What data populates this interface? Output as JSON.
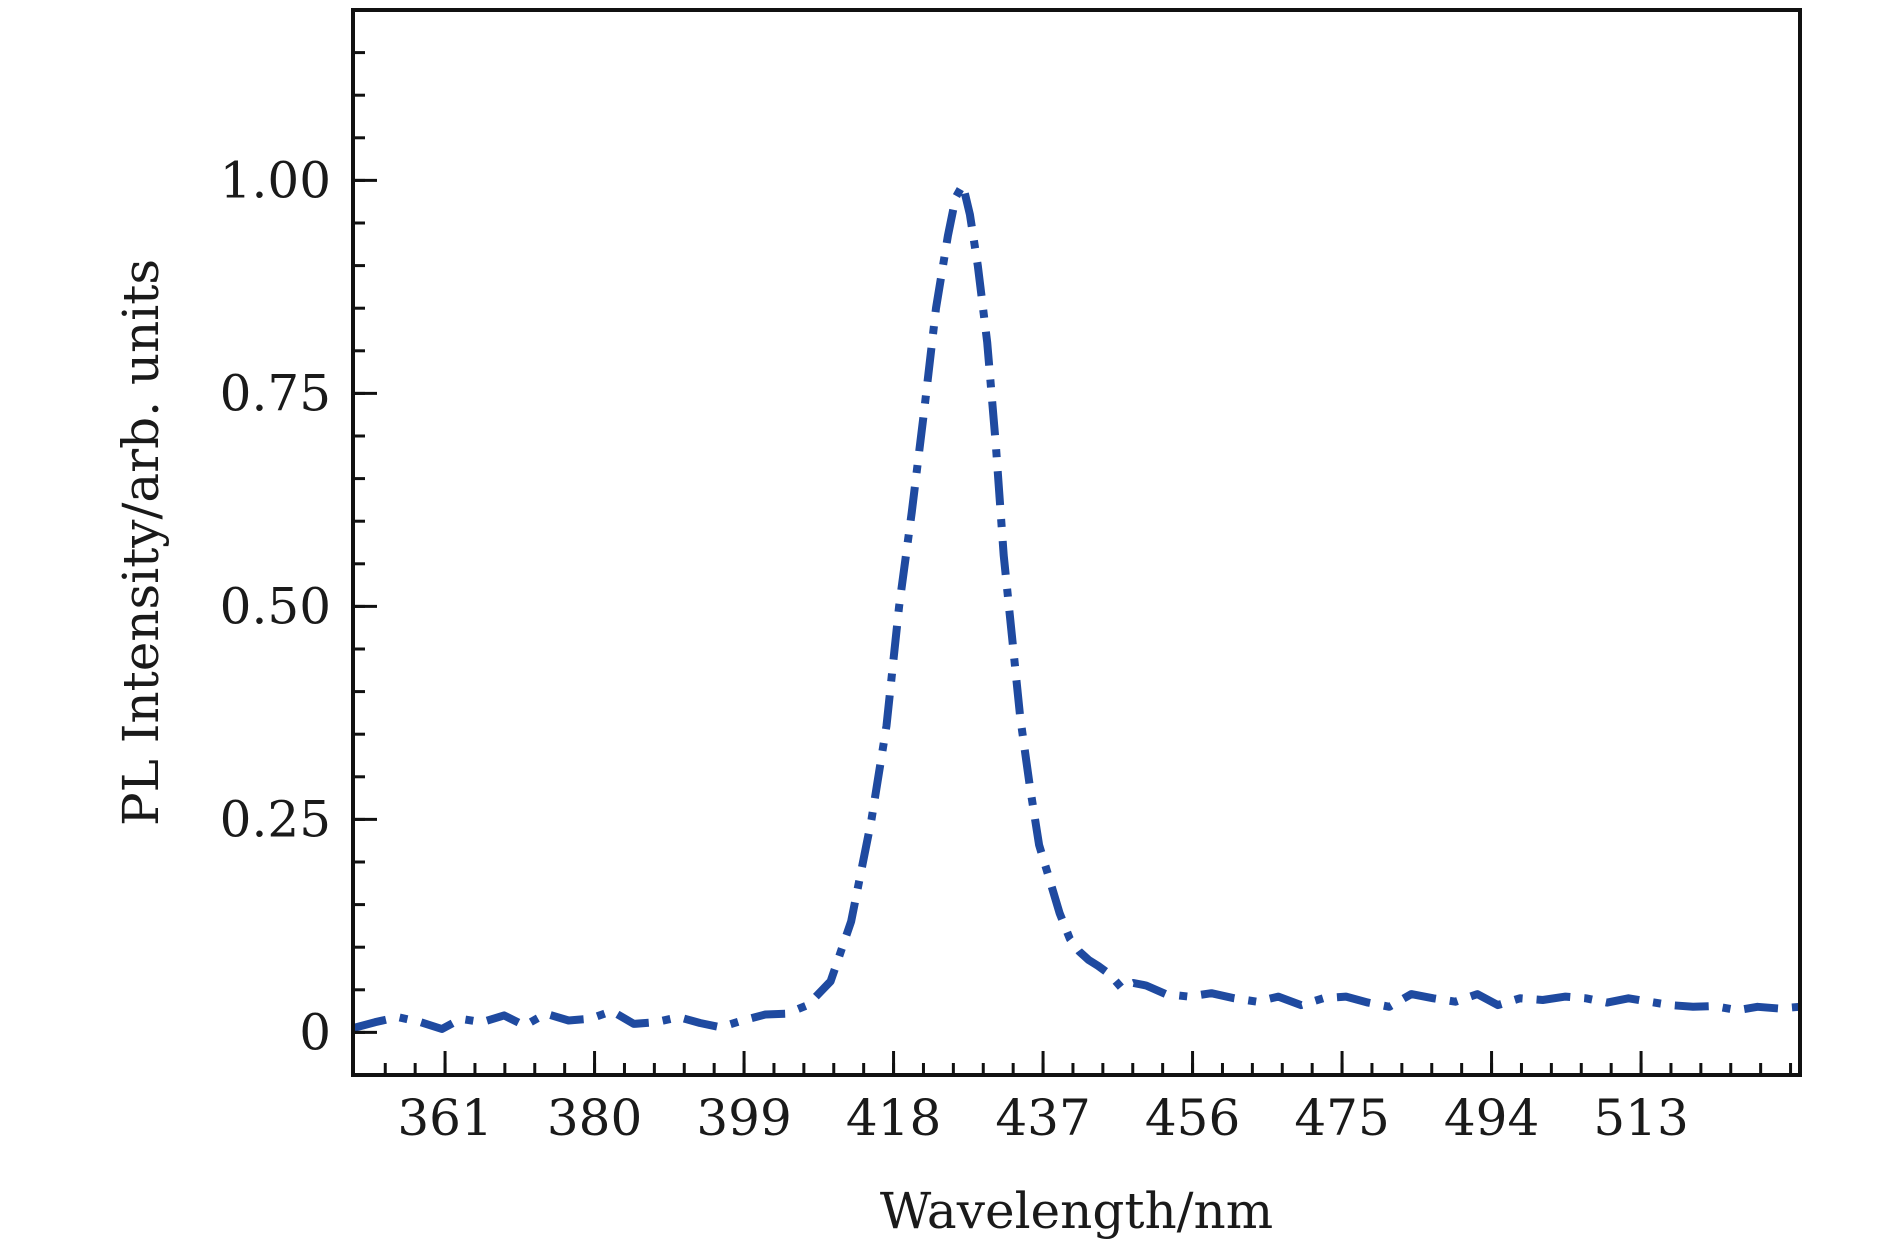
{
  "chart_data": {
    "type": "line",
    "title": "",
    "xlabel": "Wavelength/nm",
    "ylabel": "PL Intensity/arb. units",
    "xlim": [
      349.3,
      533.2
    ],
    "ylim": [
      -0.05,
      1.2
    ],
    "x_ticks": [
      361,
      380,
      399,
      418,
      437,
      456,
      475,
      494,
      513
    ],
    "x_tick_labels": [
      "361",
      "380",
      "399",
      "418",
      "437",
      "456",
      "475",
      "494",
      "513"
    ],
    "y_ticks": [
      0,
      0.25,
      0.5,
      0.75,
      1.0
    ],
    "y_tick_labels": [
      "0",
      "0.25",
      "0.50",
      "0.75",
      "1.00"
    ],
    "grid": false,
    "legend": "none",
    "series": [
      {
        "color": "#1f4aa0",
        "line_style": "dash-dot",
        "x": [
          349.3,
          352.1,
          355.0,
          357.9,
          360.6,
          363.0,
          365.7,
          368.5,
          371.1,
          373.8,
          376.7,
          379.4,
          382.2,
          385.0,
          387.8,
          390.7,
          393.4,
          396.0,
          398.8,
          401.7,
          404.4,
          407.1,
          410.0,
          412.6,
          415.2,
          417.1,
          418.7,
          420.3,
          421.9,
          423.4,
          424.9,
          425.9,
          426.8,
          427.7,
          428.7,
          429.9,
          431.0,
          432.0,
          433.1,
          434.1,
          435.3,
          436.5,
          437.8,
          439.1,
          440.4,
          441.6,
          442.8,
          444.0,
          445.5,
          447.0,
          448.5,
          450.1,
          452.6,
          455.5,
          458.4,
          461.3,
          464.2,
          466.9,
          469.8,
          472.6,
          475.5,
          478.3,
          481.0,
          483.8,
          486.6,
          489.4,
          492.2,
          494.8,
          497.6,
          500.5,
          503.4,
          506.0,
          508.7,
          511.4,
          514.0,
          516.7,
          519.6,
          522.3,
          525.2,
          527.8,
          530.5,
          533.2
        ],
        "y": [
          0.005,
          0.012,
          0.018,
          0.012,
          0.004,
          0.016,
          0.012,
          0.02,
          0.008,
          0.022,
          0.014,
          0.016,
          0.025,
          0.01,
          0.012,
          0.018,
          0.011,
          0.006,
          0.014,
          0.021,
          0.022,
          0.032,
          0.06,
          0.13,
          0.25,
          0.36,
          0.5,
          0.61,
          0.73,
          0.85,
          0.935,
          0.98,
          0.995,
          0.96,
          0.9,
          0.81,
          0.69,
          0.56,
          0.46,
          0.37,
          0.29,
          0.22,
          0.18,
          0.14,
          0.11,
          0.095,
          0.085,
          0.078,
          0.068,
          0.052,
          0.058,
          0.055,
          0.045,
          0.042,
          0.046,
          0.04,
          0.036,
          0.042,
          0.032,
          0.04,
          0.042,
          0.035,
          0.03,
          0.045,
          0.04,
          0.036,
          0.045,
          0.032,
          0.04,
          0.038,
          0.042,
          0.04,
          0.035,
          0.04,
          0.036,
          0.032,
          0.03,
          0.031,
          0.026,
          0.03,
          0.028,
          0.03
        ]
      }
    ]
  }
}
